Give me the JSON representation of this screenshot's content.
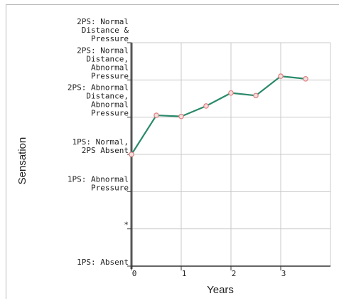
{
  "chart_data": {
    "type": "line",
    "xlabel": "Years",
    "ylabel": "Sensation",
    "x_ticks": [
      "0",
      "1",
      "2",
      "3"
    ],
    "xlim": [
      0,
      4
    ],
    "y_levels": [
      {
        "level": 0,
        "label": "1PS: Absent"
      },
      {
        "level": 1,
        "label": "*"
      },
      {
        "level": 2,
        "label": "1PS: Abnormal\nPressure"
      },
      {
        "level": 3,
        "label": "1PS: Normal,\n2PS Absent"
      },
      {
        "level": 4,
        "label": "2PS: Abnormal\nDistance,\nAbnormal\nPressure"
      },
      {
        "level": 5,
        "label": "2PS: Normal\nDistance,\nAbnormal\nPressure"
      },
      {
        "level": 6,
        "label": "2PS: Normal\nDistance &\nPressure"
      }
    ],
    "ylim": [
      0,
      6
    ],
    "grid": true,
    "series": [
      {
        "x": [
          0,
          0.5,
          1,
          1.5,
          2,
          2.5,
          3,
          3.5
        ],
        "y": [
          3,
          4.05,
          4.02,
          4.3,
          4.65,
          4.58,
          5.1,
          5.03
        ]
      }
    ],
    "colors": {
      "line": "#2a8a6b",
      "marker_edge": "#e08080",
      "marker_fill": "#f3dede",
      "grid": "#c8c8c8",
      "axis": "#555555"
    }
  }
}
